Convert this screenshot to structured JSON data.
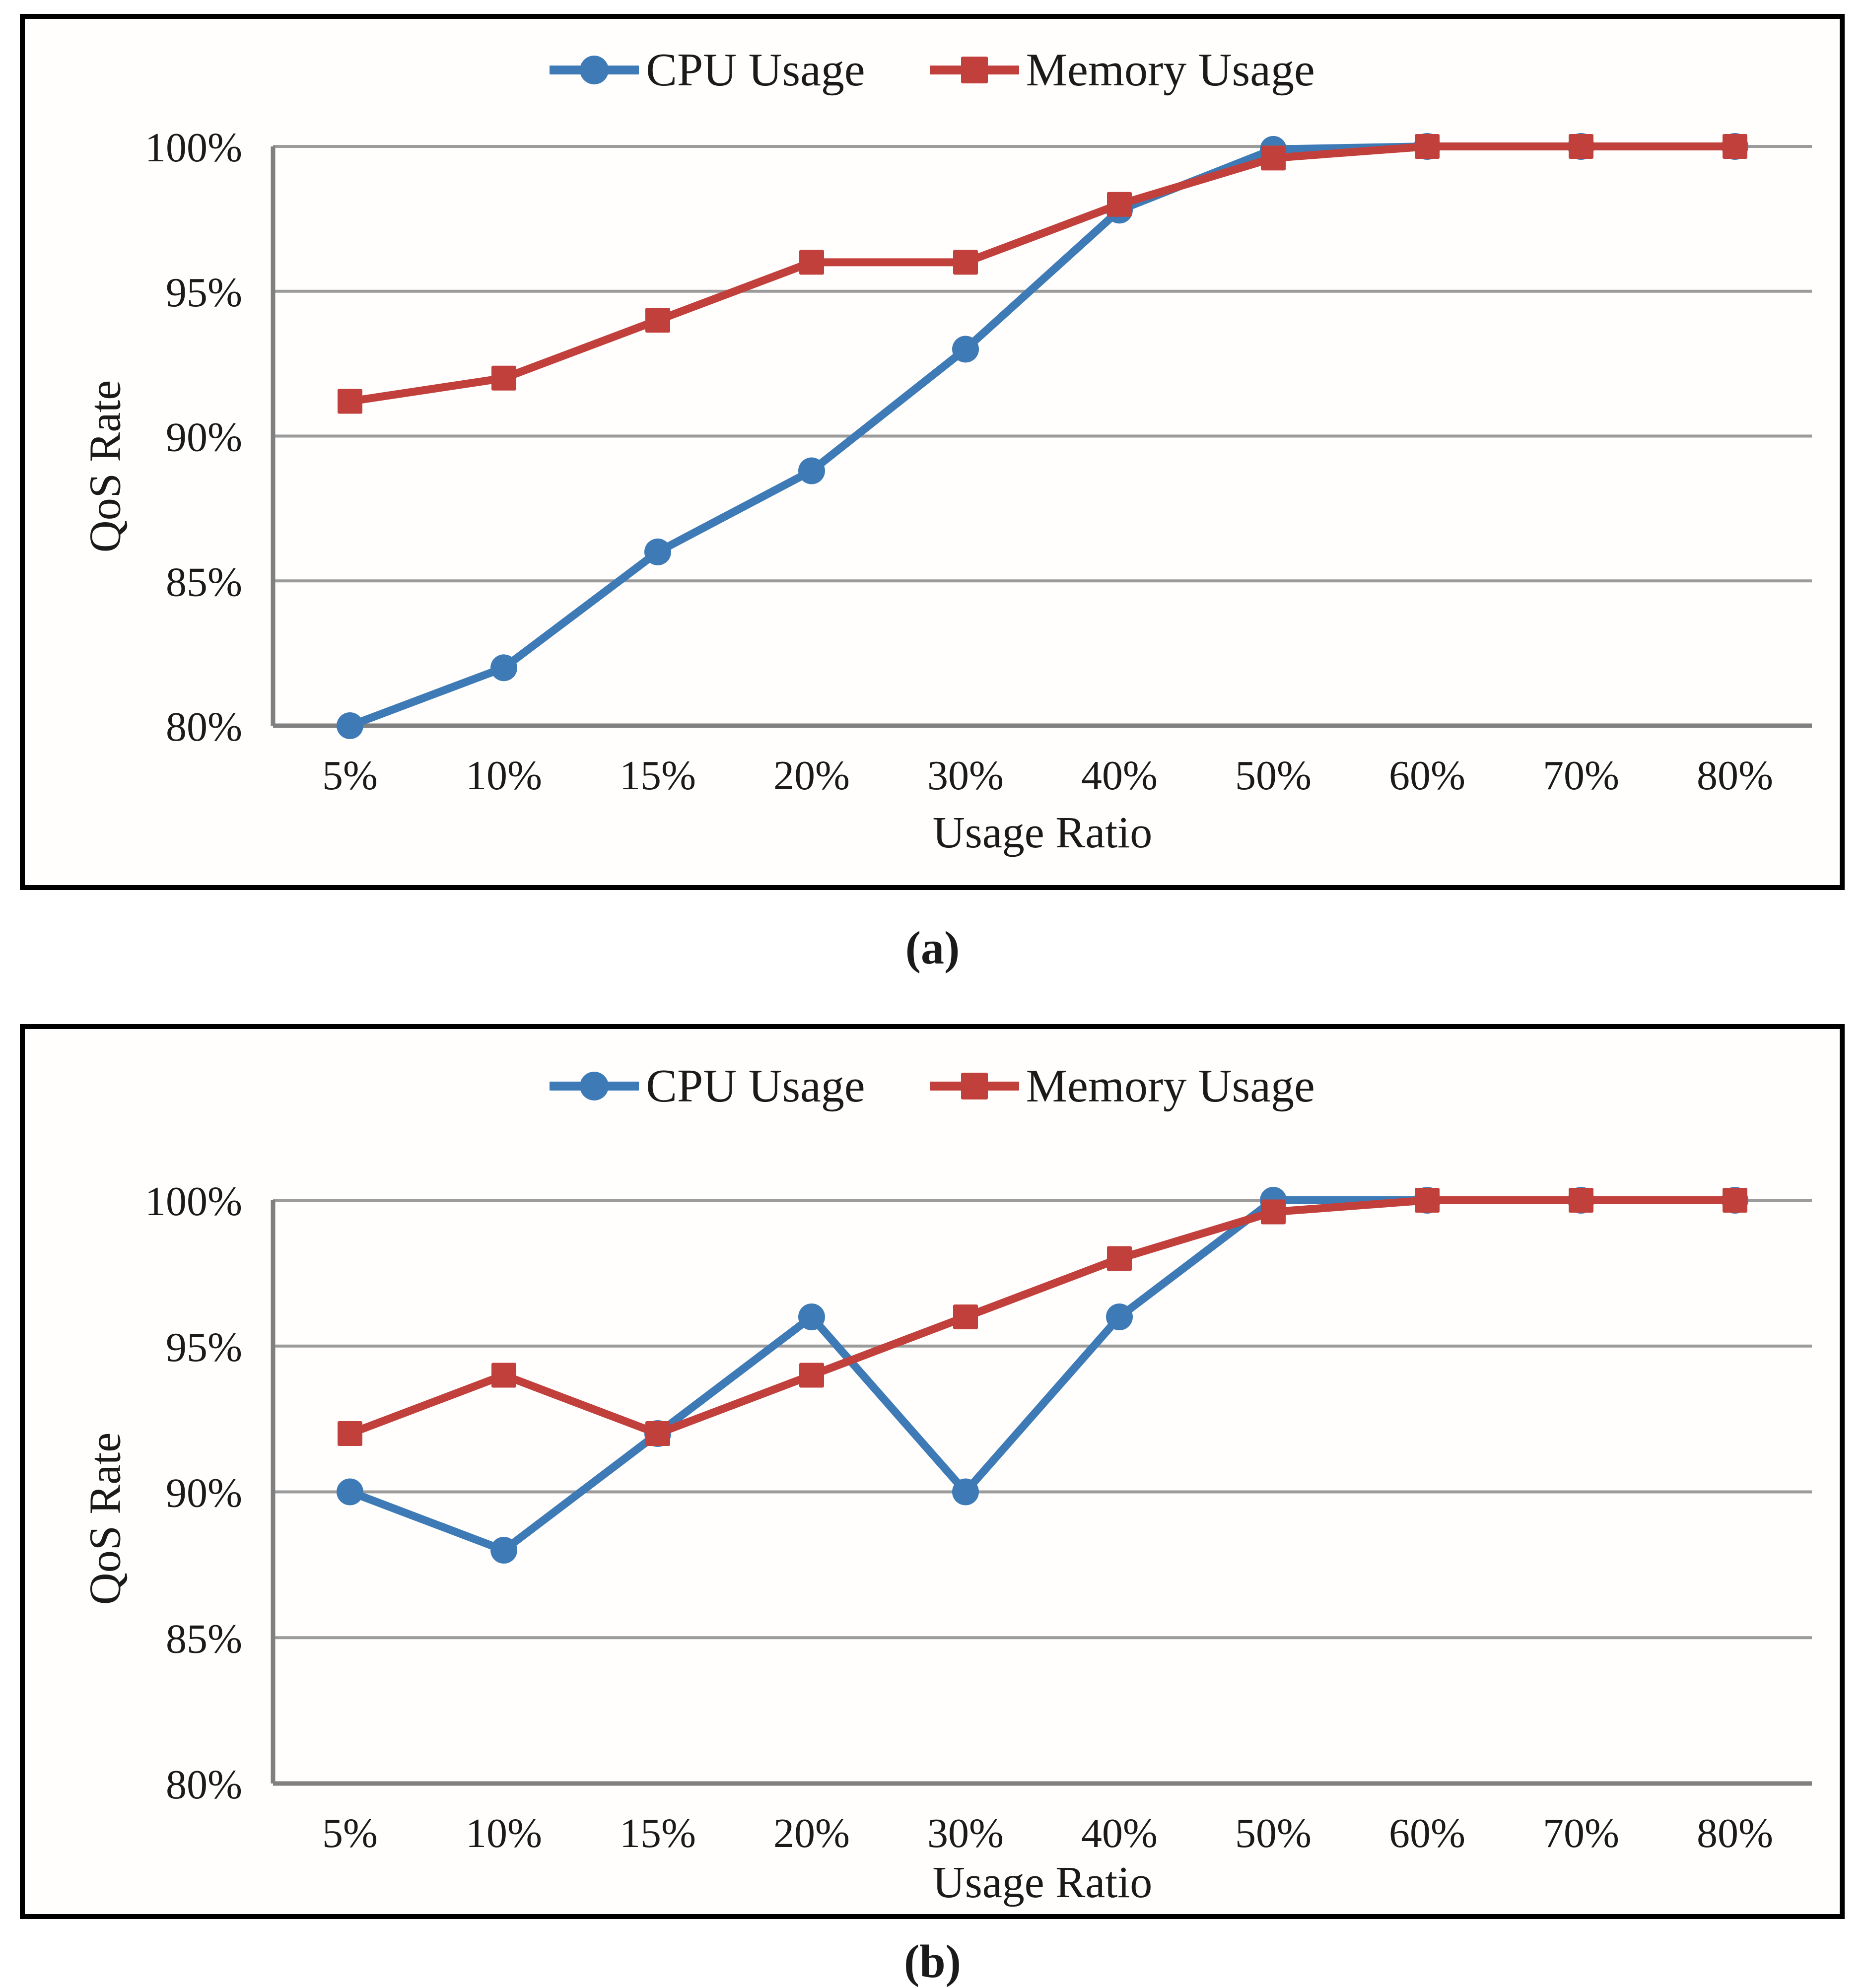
{
  "styles": {
    "cpu_color": "#3E7BB6",
    "memory_color": "#C2403B",
    "grid_color": "#9B9B9B",
    "axis_color": "#808080",
    "text_color": "#1A1A1A",
    "border_color": "#000000"
  },
  "chart_data": [
    {
      "type": "line",
      "panel": "(a)",
      "xlabel": "Usage Ratio",
      "ylabel": "QoS Rate",
      "legend_position": "top-center",
      "grid": true,
      "categories": [
        "5%",
        "10%",
        "15%",
        "20%",
        "30%",
        "40%",
        "50%",
        "60%",
        "70%",
        "80%"
      ],
      "ylim": [
        80,
        100
      ],
      "yticks": [
        100,
        95,
        90,
        85,
        80
      ],
      "ytick_labels": [
        "100%",
        "95%",
        "90%",
        "85%",
        "80%"
      ],
      "series": [
        {
          "name": "CPU Usage",
          "color": "#3E7BB6",
          "marker": "circle",
          "values": [
            80,
            82,
            86,
            88.8,
            93,
            97.8,
            99.9,
            100,
            100,
            100
          ]
        },
        {
          "name": "Memory Usage",
          "color": "#C2403B",
          "marker": "square",
          "values": [
            91.2,
            92,
            94,
            96,
            96,
            98,
            99.6,
            100,
            100,
            100
          ]
        }
      ]
    },
    {
      "type": "line",
      "panel": "(b)",
      "xlabel": "Usage Ratio",
      "ylabel": "QoS Rate",
      "legend_position": "top-center",
      "grid": true,
      "categories": [
        "5%",
        "10%",
        "15%",
        "20%",
        "30%",
        "40%",
        "50%",
        "60%",
        "70%",
        "80%"
      ],
      "ylim": [
        80,
        100
      ],
      "yticks": [
        100,
        95,
        90,
        85,
        80
      ],
      "ytick_labels": [
        "100%",
        "95%",
        "90%",
        "85%",
        "80%"
      ],
      "series": [
        {
          "name": "CPU Usage",
          "color": "#3E7BB6",
          "marker": "circle",
          "values": [
            90,
            88,
            92,
            96,
            90,
            96,
            100,
            100,
            100,
            100
          ]
        },
        {
          "name": "Memory Usage",
          "color": "#C2403B",
          "marker": "square",
          "values": [
            92,
            94,
            92,
            94,
            96,
            98,
            99.6,
            100,
            100,
            100
          ]
        }
      ]
    }
  ]
}
